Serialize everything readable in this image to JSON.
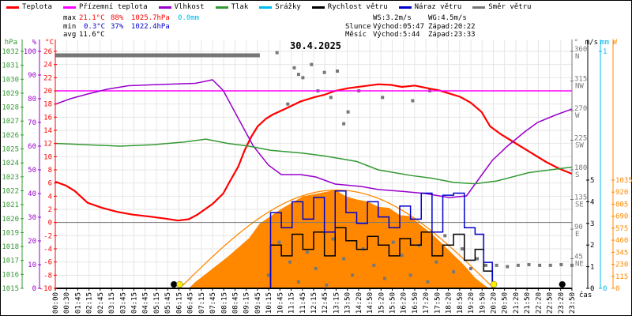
{
  "legend": [
    {
      "label": "Teplota",
      "color": "#ff0000"
    },
    {
      "label": "Přízemní teplota",
      "color": "#ff00ff"
    },
    {
      "label": "Vlhkost",
      "color": "#9900cc"
    },
    {
      "label": "Tlak",
      "color": "#339933"
    },
    {
      "label": "Srážky",
      "color": "#00bbee"
    },
    {
      "label": "Rychlost větru",
      "color": "#000000"
    },
    {
      "label": "Náraz větru",
      "color": "#0000cc"
    },
    {
      "label": "Směr větru",
      "color": "#777777"
    }
  ],
  "stats": {
    "max_label": "max",
    "max_temp": "21.1°C",
    "max_hum": "88%",
    "max_press": "1025.7hPa",
    "max_rain": "0.0mm",
    "min_label": "min",
    "min_temp": "0.3°C",
    "min_hum": "37%",
    "min_press": "1022.4hPa",
    "avg_label": "avg",
    "avg_temp": "11.6°C",
    "ws": "WS:3.2m/s",
    "wg": "WG:4.5m/s",
    "sun_label": "Slunce",
    "sunrise": "Východ:05:47",
    "sunset": "Západ:20:22",
    "moon_label": "Měsíc",
    "moonrise": "Východ:5:44",
    "moonset": "Západ:23:33"
  },
  "chart_data": {
    "type": "line",
    "title": "30.4.2025",
    "xlabel": "čas",
    "xlim": [
      0,
      24
    ],
    "x_tick_labels": [
      "00:00",
      "00:30",
      "01:45",
      "02:15",
      "02:45",
      "03:15",
      "03:45",
      "04:15",
      "04:45",
      "05:15",
      "05:45",
      "06:15",
      "06:45",
      "07:15",
      "07:45",
      "08:15",
      "08:45",
      "09:15",
      "09:45",
      "10:15",
      "10:45",
      "11:15",
      "11:45",
      "12:15",
      "12:45",
      "13:15",
      "13:50",
      "14:20",
      "14:50",
      "15:20",
      "15:50",
      "16:20",
      "16:50",
      "17:20",
      "17:50",
      "18:20",
      "18:50",
      "19:20",
      "19:50",
      "20:20",
      "20:50",
      "21:20",
      "21:50",
      "22:20",
      "22:50",
      "23:20",
      "23:50"
    ],
    "axes": {
      "pressure": {
        "unit": "hPa",
        "range": [
          1015,
          1032
        ],
        "ticks": [
          1015,
          1016,
          1017,
          1018,
          1019,
          1020,
          1021,
          1022,
          1023,
          1024,
          1025,
          1026,
          1027,
          1028,
          1029,
          1030,
          1031,
          1032
        ],
        "color": "#339933"
      },
      "humidity": {
        "unit": "%",
        "range": [
          0,
          100
        ],
        "ticks": [
          0,
          10,
          20,
          30,
          40,
          50,
          60,
          70,
          80,
          90,
          100
        ],
        "color": "#9900cc"
      },
      "temperature": {
        "unit": "°C",
        "range": [
          -10,
          26
        ],
        "ticks": [
          -10,
          -8,
          -6,
          -4,
          -2,
          0,
          2,
          4,
          6,
          8,
          10,
          12,
          14,
          16,
          18,
          20,
          22,
          24,
          26
        ],
        "color": "#ff0000"
      },
      "direction": {
        "unit": "°",
        "range": [
          0,
          360
        ],
        "ticks": [
          {
            "v": 45,
            "l": "NE"
          },
          {
            "v": 90,
            "l": "E"
          },
          {
            "v": 135,
            "l": "SE"
          },
          {
            "v": 180,
            "l": "S"
          },
          {
            "v": 225,
            "l": "SW"
          },
          {
            "v": 270,
            "l": "W"
          },
          {
            "v": 315,
            "l": "NW"
          },
          {
            "v": 360,
            "l": "N"
          }
        ],
        "color": "#777777"
      },
      "wind": {
        "unit": "m/s",
        "range": [
          0,
          5
        ],
        "ticks": [
          0,
          1,
          2,
          3,
          4,
          5
        ],
        "color": "#000000"
      },
      "rain": {
        "unit": "mm",
        "range": [
          0,
          1
        ],
        "ticks": [
          0,
          1
        ],
        "color": "#00bbee"
      },
      "solar": {
        "unit": "W",
        "range": [
          0,
          1035
        ],
        "ticks": [
          0,
          115,
          230,
          345,
          460,
          575,
          690,
          805,
          920,
          1035
        ],
        "color": "#ff8800"
      }
    },
    "series": [
      {
        "name": "Teplota",
        "axis": "temperature",
        "color": "#ff0000",
        "x": [
          0,
          0.5,
          0.9,
          1.5,
          2.2,
          2.9,
          3.6,
          4.4,
          5.1,
          5.7,
          6.2,
          6.6,
          7.3,
          7.8,
          8.1,
          8.5,
          8.8,
          9.1,
          9.4,
          9.8,
          10.1,
          10.7,
          11.4,
          12,
          12.5,
          13,
          13.6,
          14.3,
          15,
          15.6,
          16.1,
          16.7,
          17.3,
          17.8,
          18.3,
          18.8,
          19.3,
          19.8,
          20.2,
          20.7,
          21.3,
          22,
          22.8,
          23.4,
          24
        ],
        "y": [
          6.2,
          5.6,
          4.8,
          3.0,
          2.2,
          1.6,
          1.2,
          0.9,
          0.6,
          0.3,
          0.5,
          1.2,
          2.8,
          4.4,
          6.2,
          8.5,
          11,
          13,
          14.6,
          15.8,
          16.4,
          17.3,
          18.4,
          19,
          19.4,
          20,
          20.4,
          20.7,
          21,
          20.9,
          20.6,
          20.8,
          20.4,
          20.1,
          19.6,
          19.1,
          18.2,
          16.8,
          14.6,
          13.4,
          12.2,
          10.8,
          9.2,
          8.2,
          7.4
        ]
      },
      {
        "name": "Přízemní teplota",
        "axis": "temperature",
        "color": "#ff00ff",
        "x": [
          0,
          24
        ],
        "y": [
          20,
          20
        ]
      },
      {
        "name": "Vlhkost",
        "axis": "humidity",
        "color": "#9900cc",
        "x": [
          0,
          0.7,
          1.5,
          2.4,
          3.4,
          4.8,
          6.5,
          7.3,
          7.8,
          8.5,
          9.2,
          9.9,
          10.5,
          11.4,
          12.1,
          13.0,
          14.2,
          15.0,
          16.0,
          17.2,
          18.3,
          19.1,
          19.5,
          20.3,
          21.0,
          21.8,
          22.4,
          23.2,
          24
        ],
        "y": [
          77.7,
          80,
          82,
          84,
          85.5,
          86,
          86.5,
          88,
          83.5,
          71.7,
          60,
          52,
          48,
          48,
          47,
          44,
          43,
          41.7,
          41,
          40,
          38.3,
          39,
          44,
          54,
          60,
          66,
          70,
          73,
          75.7
        ]
      },
      {
        "name": "Tlak",
        "axis": "pressure",
        "color": "#339933",
        "x": [
          0,
          1.5,
          3,
          4.5,
          6,
          7,
          8,
          9,
          10,
          11.5,
          12.5,
          14,
          15,
          16.5,
          17.5,
          18.5,
          19.5,
          20.5,
          22,
          23,
          24
        ],
        "y": [
          1025.4,
          1025.3,
          1025.2,
          1025.3,
          1025.5,
          1025.7,
          1025.4,
          1025.2,
          1024.9,
          1024.7,
          1024.5,
          1024.1,
          1023.5,
          1023.1,
          1022.9,
          1022.6,
          1022.5,
          1022.7,
          1023.3,
          1023.5,
          1023.7
        ]
      },
      {
        "name": "Srážky",
        "axis": "rain",
        "color": "#00bbee",
        "x": [
          0,
          24
        ],
        "y": [
          0,
          0
        ]
      },
      {
        "name": "Rychlost větru",
        "axis": "wind",
        "color": "#000000",
        "x": [
          9.7,
          10.0,
          10.5,
          11.0,
          11.5,
          12.0,
          12.5,
          13.0,
          13.5,
          14.0,
          14.5,
          15.0,
          15.5,
          16.0,
          16.5,
          17.0,
          17.5,
          18.0,
          18.5,
          19.0,
          19.5,
          19.9,
          20.3
        ],
        "y": [
          0,
          2.0,
          1.5,
          2.5,
          1.8,
          2.6,
          1.5,
          2.8,
          2.2,
          1.8,
          2.4,
          2.0,
          1.5,
          2.3,
          2.0,
          2.6,
          1.5,
          2.0,
          2.5,
          1.3,
          1.8,
          0.8,
          0
        ]
      },
      {
        "name": "Náraz větru",
        "axis": "wind",
        "color": "#0000cc",
        "x": [
          9.7,
          10.0,
          10.5,
          11.0,
          11.5,
          12.0,
          12.5,
          13.0,
          13.5,
          14.0,
          14.5,
          15.0,
          15.5,
          16.0,
          16.5,
          17.0,
          17.5,
          18.0,
          18.5,
          19.0,
          19.5,
          19.9,
          20.3
        ],
        "y": [
          0,
          3.5,
          2.8,
          4.0,
          3.2,
          4.2,
          2.6,
          4.5,
          3.5,
          3.0,
          4.0,
          3.3,
          2.8,
          3.8,
          3.2,
          4.4,
          2.6,
          4.3,
          4.4,
          2.8,
          2.5,
          1.2,
          0
        ]
      }
    ],
    "wind_direction": {
      "axis": "direction",
      "color": "#777777",
      "points": [
        [
          10.3,
          358
        ],
        [
          10.8,
          280
        ],
        [
          11.1,
          335
        ],
        [
          11.3,
          325
        ],
        [
          11.5,
          320
        ],
        [
          11.9,
          340
        ],
        [
          12.2,
          300
        ],
        [
          12.5,
          328
        ],
        [
          12.8,
          290
        ],
        [
          13.1,
          330
        ],
        [
          13.4,
          250
        ],
        [
          13.6,
          268
        ],
        [
          14.1,
          300
        ],
        [
          15.2,
          290
        ],
        [
          16.6,
          285
        ],
        [
          17.4,
          300
        ],
        [
          9.9,
          20
        ],
        [
          10.4,
          70
        ],
        [
          10.9,
          40
        ],
        [
          11.3,
          10
        ],
        [
          11.7,
          55
        ],
        [
          12.1,
          30
        ],
        [
          12.6,
          5
        ],
        [
          12.9,
          75
        ],
        [
          13.4,
          45
        ],
        [
          13.8,
          20
        ],
        [
          14.3,
          60
        ],
        [
          14.8,
          35
        ],
        [
          15.3,
          15
        ],
        [
          15.7,
          70
        ],
        [
          16.1,
          50
        ],
        [
          16.5,
          20
        ],
        [
          16.9,
          65
        ],
        [
          17.3,
          10
        ],
        [
          17.7,
          40
        ],
        [
          18.1,
          80
        ],
        [
          18.5,
          25
        ],
        [
          18.9,
          60
        ],
        [
          19.3,
          30
        ],
        [
          19.6,
          45
        ],
        [
          20,
          35
        ],
        [
          20.5,
          35
        ],
        [
          21,
          33
        ],
        [
          21.5,
          35
        ],
        [
          22,
          36
        ],
        [
          22.5,
          35
        ],
        [
          23,
          35
        ],
        [
          23.5,
          36
        ],
        [
          24,
          35
        ]
      ],
      "bar": {
        "from": 0,
        "to": 9.5,
        "value": 354
      }
    },
    "solar": {
      "axis": "solar",
      "color": "#ff8800",
      "measured": {
        "x": [
          6.2,
          6.5,
          7,
          8,
          9,
          9.5,
          10,
          10.5,
          11,
          11.5,
          12,
          12.5,
          13,
          13.5,
          14,
          14.5,
          15,
          15.5,
          16,
          16.5,
          17,
          17.5,
          18,
          18.5,
          19,
          19.5,
          20,
          20.2
        ],
        "y": [
          0,
          60,
          140,
          300,
          480,
          620,
          690,
          760,
          820,
          880,
          900,
          920,
          940,
          880,
          850,
          830,
          780,
          770,
          700,
          690,
          600,
          520,
          420,
          320,
          220,
          100,
          20,
          0
        ]
      },
      "theoretical_peak": 940,
      "theoretical_peak_time": 13.08,
      "theoretical_from": 5.78,
      "theoretical_to": 20.37
    },
    "markers": [
      {
        "type": "moonrise",
        "time": 5.73,
        "color": "#000000"
      },
      {
        "type": "sunrise",
        "time": 5.78,
        "color": "#ffee00"
      },
      {
        "type": "sunset",
        "time": 20.37,
        "color": "#ffee00"
      },
      {
        "type": "moonset",
        "time": 23.55,
        "color": "#000000"
      }
    ],
    "reference_line": {
      "axis": "temperature",
      "value": 0,
      "color": "#777777"
    },
    "grid": true
  }
}
